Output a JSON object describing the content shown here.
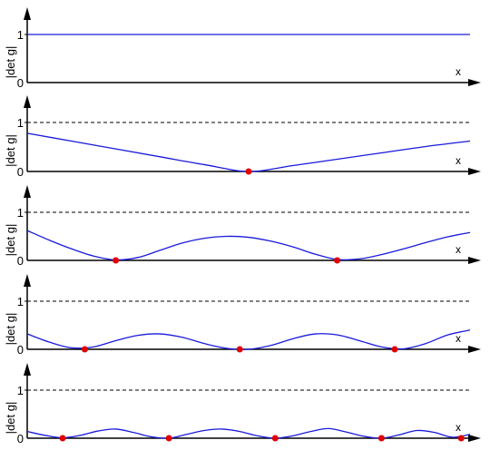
{
  "chart_data": [
    {
      "type": "line",
      "ylabel": "|det g|",
      "xlabel": "x",
      "yticks": [
        "0",
        "1"
      ],
      "reference_line": null,
      "series": [
        {
          "x": [
            0,
            1
          ],
          "y": [
            1,
            1
          ]
        }
      ],
      "zeros": []
    },
    {
      "type": "line",
      "ylabel": "|det g|",
      "xlabel": "x",
      "yticks": [
        "0",
        "1"
      ],
      "reference_line": 1,
      "series": [
        {
          "x": [
            0,
            0.1,
            0.2,
            0.3,
            0.4,
            0.5,
            0.6,
            0.7,
            0.8,
            0.9,
            1.0
          ],
          "y": [
            0.78,
            0.62,
            0.46,
            0.3,
            0.14,
            0.0,
            0.12,
            0.25,
            0.38,
            0.51,
            0.62
          ]
        }
      ],
      "zeros": [
        0.5
      ]
    },
    {
      "type": "line",
      "ylabel": "|det g|",
      "xlabel": "x",
      "yticks": [
        "0",
        "1"
      ],
      "reference_line": 1,
      "series": [
        {
          "x": [
            0,
            0.05,
            0.1,
            0.15,
            0.2,
            0.25,
            0.3,
            0.35,
            0.4,
            0.45,
            0.5,
            0.55,
            0.6,
            0.65,
            0.7,
            0.75,
            0.8,
            0.85,
            0.9,
            0.95,
            1.0
          ],
          "y": [
            0.62,
            0.42,
            0.24,
            0.09,
            0.01,
            0.06,
            0.21,
            0.36,
            0.46,
            0.5,
            0.48,
            0.4,
            0.28,
            0.13,
            0.02,
            0.03,
            0.12,
            0.24,
            0.37,
            0.49,
            0.58
          ]
        }
      ],
      "zeros": [
        0.2,
        0.7
      ]
    },
    {
      "type": "line",
      "ylabel": "|det g|",
      "xlabel": "x",
      "yticks": [
        "0",
        "1"
      ],
      "reference_line": 1,
      "series": [
        {
          "x": [
            0,
            0.05,
            0.1,
            0.15,
            0.2,
            0.25,
            0.3,
            0.35,
            0.4,
            0.45,
            0.5,
            0.55,
            0.6,
            0.65,
            0.7,
            0.75,
            0.8,
            0.85,
            0.9,
            0.95,
            1.0
          ],
          "y": [
            0.32,
            0.15,
            0.03,
            0.05,
            0.18,
            0.29,
            0.32,
            0.25,
            0.12,
            0.02,
            0.0,
            0.08,
            0.22,
            0.32,
            0.3,
            0.18,
            0.05,
            0.01,
            0.12,
            0.3,
            0.4
          ]
        }
      ],
      "zeros": [
        0.13,
        0.48,
        0.83
      ]
    },
    {
      "type": "line",
      "ylabel": "|det g|",
      "xlabel": "x",
      "yticks": [
        "0",
        "1"
      ],
      "reference_line": 1,
      "series": [
        {
          "x": [
            0,
            0.04,
            0.08,
            0.12,
            0.16,
            0.2,
            0.24,
            0.28,
            0.32,
            0.36,
            0.4,
            0.44,
            0.48,
            0.52,
            0.56,
            0.6,
            0.64,
            0.68,
            0.72,
            0.76,
            0.8,
            0.84,
            0.88,
            0.92,
            0.96,
            1.0
          ],
          "y": [
            0.14,
            0.06,
            0.01,
            0.06,
            0.15,
            0.19,
            0.12,
            0.03,
            0.0,
            0.08,
            0.16,
            0.19,
            0.14,
            0.05,
            0.0,
            0.05,
            0.14,
            0.2,
            0.13,
            0.04,
            0.0,
            0.07,
            0.16,
            0.12,
            0.02,
            0.08
          ]
        }
      ],
      "zeros": [
        0.08,
        0.32,
        0.56,
        0.8,
        0.98
      ]
    }
  ]
}
